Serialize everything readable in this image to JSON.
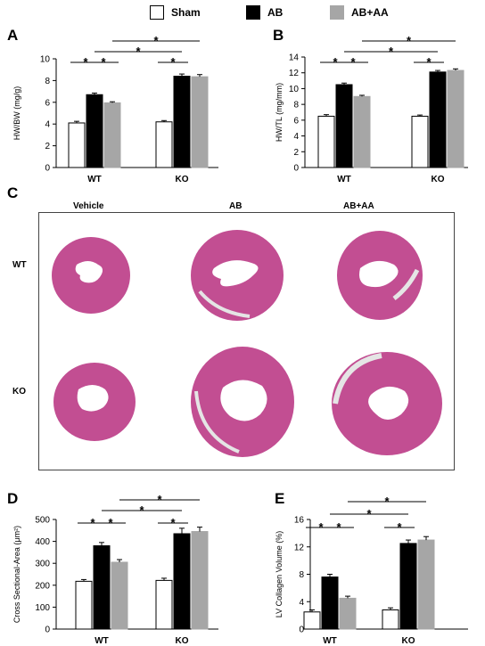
{
  "legend": {
    "items": [
      {
        "label": "Sham",
        "color": "#ffffff"
      },
      {
        "label": "AB",
        "color": "#000000"
      },
      {
        "label": "AB+AA",
        "color": "#a6a6a6"
      }
    ]
  },
  "panels": {
    "A": "A",
    "B": "B",
    "C": "C",
    "D": "D",
    "E": "E"
  },
  "histology": {
    "columns": [
      "Vehicle",
      "AB",
      "AB+AA"
    ],
    "rows": [
      "WT",
      "KO"
    ],
    "tissue_color": "#c24e92",
    "lumen_color": "#ffffff"
  },
  "significance_marker": "*",
  "chart_data": [
    {
      "id": "A",
      "type": "bar",
      "categories": [
        "WT",
        "KO"
      ],
      "series": [
        {
          "name": "Sham",
          "values": [
            4.1,
            4.2
          ],
          "errors": [
            0.15,
            0.12
          ]
        },
        {
          "name": "AB",
          "values": [
            6.7,
            8.4
          ],
          "errors": [
            0.15,
            0.2
          ]
        },
        {
          "name": "AB+AA",
          "values": [
            5.95,
            8.35
          ],
          "errors": [
            0.1,
            0.2
          ]
        }
      ],
      "ylabel": "HW/BW (mg/g)",
      "ylim": [
        0,
        10
      ],
      "yticks": [
        0,
        2,
        4,
        6,
        8,
        10
      ],
      "significance": [
        {
          "from": [
            0,
            0
          ],
          "to": [
            0,
            1
          ],
          "level": 0
        },
        {
          "from": [
            0,
            1
          ],
          "to": [
            0,
            2
          ],
          "level": 0
        },
        {
          "from": [
            1,
            0
          ],
          "to": [
            1,
            1
          ],
          "level": 0
        },
        {
          "from": [
            0,
            1
          ],
          "to": [
            1,
            1
          ],
          "level": 1
        },
        {
          "from": [
            0,
            2
          ],
          "to": [
            1,
            2
          ],
          "level": 2
        }
      ]
    },
    {
      "id": "B",
      "type": "bar",
      "categories": [
        "WT",
        "KO"
      ],
      "series": [
        {
          "name": "Sham",
          "values": [
            6.5,
            6.5
          ],
          "errors": [
            0.2,
            0.15
          ]
        },
        {
          "name": "AB",
          "values": [
            10.5,
            12.1
          ],
          "errors": [
            0.2,
            0.2
          ]
        },
        {
          "name": "AB+AA",
          "values": [
            9.0,
            12.3
          ],
          "errors": [
            0.15,
            0.2
          ]
        }
      ],
      "ylabel": "HW/TL (mg/mm)",
      "ylim": [
        0,
        14
      ],
      "yticks": [
        0,
        2,
        4,
        6,
        8,
        10,
        12,
        14
      ],
      "significance": [
        {
          "from": [
            0,
            0
          ],
          "to": [
            0,
            1
          ],
          "level": 0
        },
        {
          "from": [
            0,
            1
          ],
          "to": [
            0,
            2
          ],
          "level": 0
        },
        {
          "from": [
            1,
            0
          ],
          "to": [
            1,
            1
          ],
          "level": 0
        },
        {
          "from": [
            0,
            1
          ],
          "to": [
            1,
            1
          ],
          "level": 1
        },
        {
          "from": [
            0,
            2
          ],
          "to": [
            1,
            2
          ],
          "level": 2
        }
      ]
    },
    {
      "id": "D",
      "type": "bar",
      "categories": [
        "WT",
        "KO"
      ],
      "series": [
        {
          "name": "Sham",
          "values": [
            218,
            222
          ],
          "errors": [
            8,
            10
          ]
        },
        {
          "name": "AB",
          "values": [
            380,
            435
          ],
          "errors": [
            15,
            25
          ]
        },
        {
          "name": "AB+AA",
          "values": [
            305,
            445
          ],
          "errors": [
            12,
            20
          ]
        }
      ],
      "ylabel": "Cross Sectional-Area (μm²)",
      "ylim": [
        0,
        500
      ],
      "yticks": [
        0,
        100,
        200,
        300,
        400,
        500
      ],
      "significance": [
        {
          "from": [
            0,
            0
          ],
          "to": [
            0,
            1
          ],
          "level": 0
        },
        {
          "from": [
            0,
            1
          ],
          "to": [
            0,
            2
          ],
          "level": 0
        },
        {
          "from": [
            1,
            0
          ],
          "to": [
            1,
            1
          ],
          "level": 0
        },
        {
          "from": [
            0,
            1
          ],
          "to": [
            1,
            1
          ],
          "level": 1
        },
        {
          "from": [
            0,
            2
          ],
          "to": [
            1,
            2
          ],
          "level": 2
        }
      ]
    },
    {
      "id": "E",
      "type": "bar",
      "categories": [
        "WT",
        "KO"
      ],
      "series": [
        {
          "name": "Sham",
          "values": [
            2.5,
            2.8
          ],
          "errors": [
            0.3,
            0.3
          ]
        },
        {
          "name": "AB",
          "values": [
            7.6,
            12.5
          ],
          "errors": [
            0.4,
            0.5
          ]
        },
        {
          "name": "AB+AA",
          "values": [
            4.5,
            13.0
          ],
          "errors": [
            0.3,
            0.5
          ]
        }
      ],
      "ylabel": "LV Collagen Volume (%)",
      "ylim": [
        0,
        16
      ],
      "yticks": [
        0,
        4,
        8,
        12,
        16
      ],
      "significance": [
        {
          "from": [
            0,
            0
          ],
          "to": [
            0,
            1
          ],
          "level": 0
        },
        {
          "from": [
            0,
            1
          ],
          "to": [
            0,
            2
          ],
          "level": 0
        },
        {
          "from": [
            1,
            0
          ],
          "to": [
            1,
            1
          ],
          "level": 0
        },
        {
          "from": [
            0,
            1
          ],
          "to": [
            1,
            1
          ],
          "level": 1
        },
        {
          "from": [
            0,
            2
          ],
          "to": [
            1,
            2
          ],
          "level": 2
        }
      ]
    }
  ]
}
